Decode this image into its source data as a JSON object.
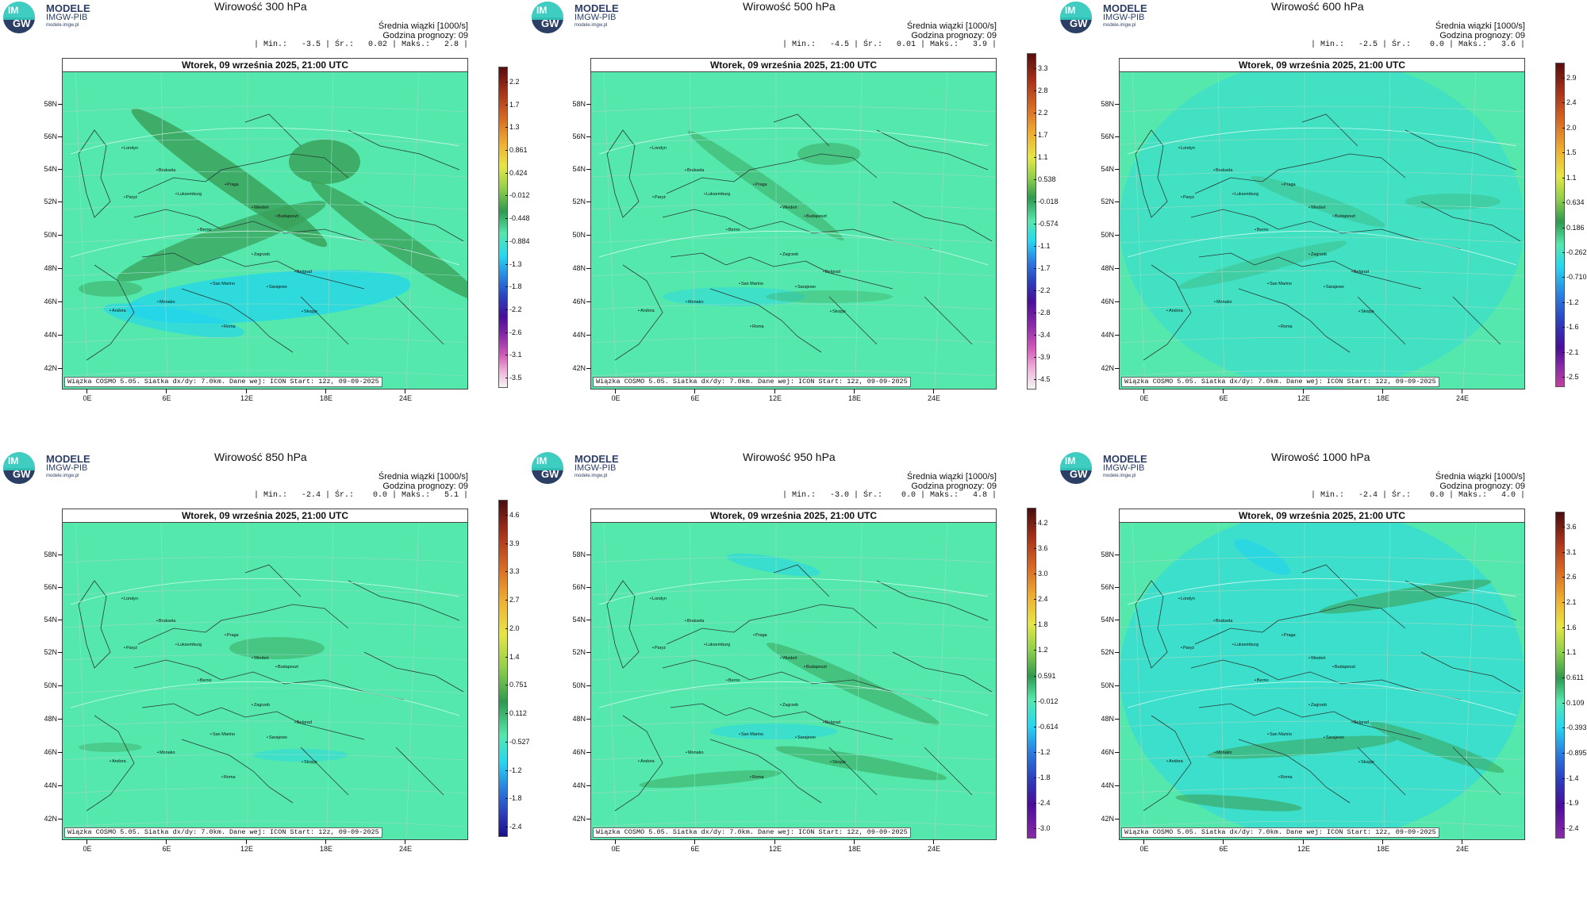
{
  "logo": {
    "circle_top": "IM",
    "circle_bottom": "GW",
    "line1": "MODELE",
    "line2": "IMGW-PIB",
    "line3": "modele.imgw.pl"
  },
  "common": {
    "mean_label": "Średnia wiązki [1000/s]",
    "forecast_hour": "Godzina prognozy: 09",
    "date": "Wtorek, 09 września 2025, 21:00 UTC",
    "footer": "Wiązka COSMO 5.05. Siatka dx/dy: 7.0km. Dane wej: ICON Start: 12z, 09-09-2025",
    "lat_labels": [
      "58N",
      "56N",
      "54N",
      "52N",
      "50N",
      "48N",
      "46N",
      "44N",
      "42N"
    ],
    "lon_labels": [
      "0E",
      "6E",
      "12E",
      "18E",
      "24E"
    ],
    "cities": [
      "Londyn",
      "Bruksela",
      "Paryż",
      "Luksemburg",
      "Praga",
      "Wiedeń",
      "Budapeszt",
      "Berno",
      "Zagrzeb",
      "Belgrad",
      "San Marino",
      "Sarajewo",
      "Andora",
      "Monako",
      "Skopje",
      "Roma"
    ]
  },
  "colors": {
    "field_base": "#55e8ad",
    "field_positive": "#3aa25a",
    "field_negative": "#1fd4f0"
  },
  "panels": [
    {
      "title": "Wirowość 300 hPa",
      "minmax": "| Min.:   -3.5 | Śr.:   0.02 | Maks.:   2.8 |",
      "colorbar": [
        "2.2",
        "1.7",
        "1.3",
        "0.861",
        "0.424",
        "-0.012",
        "-0.448",
        "-0.884",
        "-1.3",
        "-1.8",
        "-2.2",
        "-2.6",
        "-3.1",
        "-3.5"
      ]
    },
    {
      "title": "Wirowość 500 hPa",
      "minmax": "| Min.:   -4.5 | Śr.:   0.01 | Maks.:   3.9 |",
      "colorbar": [
        "3.3",
        "2.8",
        "2.2",
        "1.7",
        "1.1",
        "0.538",
        "-0.018",
        "-0.574",
        "-1.1",
        "-1.7",
        "-2.2",
        "-2.8",
        "-3.4",
        "-3.9",
        "-4.5"
      ]
    },
    {
      "title": "Wirowość 600 hPa",
      "minmax": "| Min.:   -2.5 | Śr.:    0.0 | Maks.:   3.6 |",
      "colorbar": [
        "2.9",
        "2.4",
        "2.0",
        "1.5",
        "1.1",
        "0.634",
        "0.186",
        "-0.262",
        "-0.710",
        "-1.2",
        "-1.6",
        "-2.1",
        "-2.5"
      ]
    },
    {
      "title": "Wirowość 850 hPa",
      "minmax": "| Min.:   -2.4 | Śr.:    0.0 | Maks.:   5.1 |",
      "colorbar": [
        "4.6",
        "3.9",
        "3.3",
        "2.7",
        "2.0",
        "1.4",
        "0.751",
        "0.112",
        "-0.527",
        "-1.2",
        "-1.8",
        "-2.4"
      ]
    },
    {
      "title": "Wirowość 950 hPa",
      "minmax": "| Min.:   -3.0 | Śr.:    0.0 | Maks.:   4.8 |",
      "colorbar": [
        "4.2",
        "3.6",
        "3.0",
        "2.4",
        "1.8",
        "1.2",
        "0.591",
        "-0.012",
        "-0.614",
        "-1.2",
        "-1.8",
        "-2.4",
        "-3.0"
      ]
    },
    {
      "title": "Wirowość 1000 hPa",
      "minmax": "| Min.:   -2.4 | Śr.:    0.0 | Maks.:   4.0 |",
      "colorbar": [
        "3.6",
        "3.1",
        "2.6",
        "2.1",
        "1.6",
        "1.1",
        "0.611",
        "0.109",
        "-0.393",
        "-0.895",
        "-1.4",
        "-1.9",
        "-2.4"
      ]
    }
  ]
}
